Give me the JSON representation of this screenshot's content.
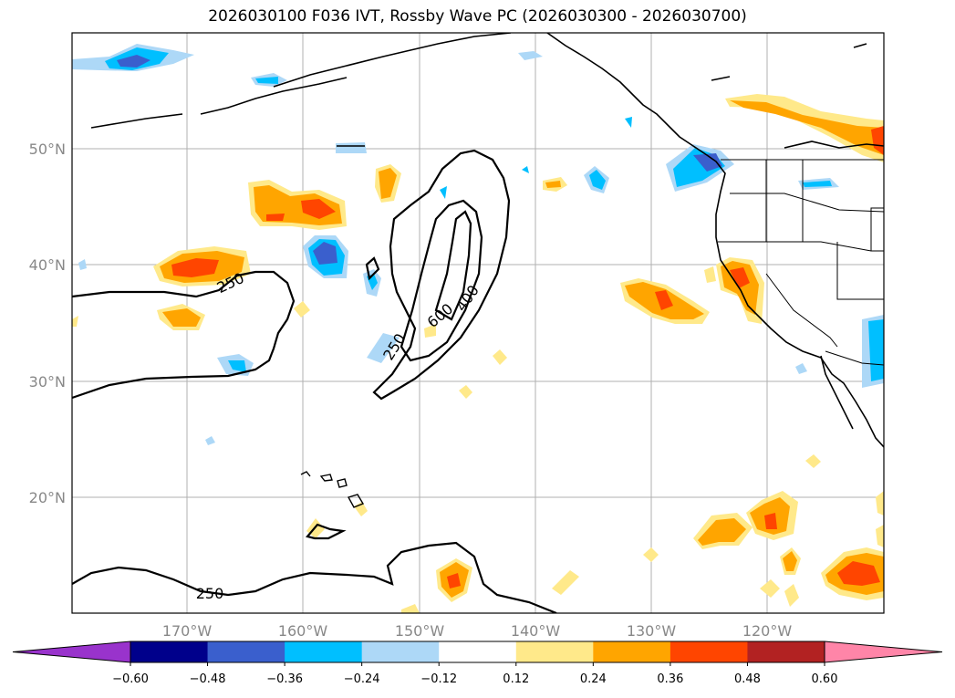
{
  "title": "2026030100 F036 IVT, Rossby Wave PC (2026030300 - 2026030700)",
  "lon_ticks": [
    "170°W",
    "160°W",
    "150°W",
    "140°W",
    "130°W",
    "120°W"
  ],
  "lat_ticks": [
    "50°N",
    "40°N",
    "30°N",
    "20°N"
  ],
  "contour_labels": [
    "250",
    "250",
    "250",
    "600",
    "400"
  ],
  "colorbar": {
    "tick_labels": [
      "−0.60",
      "−0.48",
      "−0.36",
      "−0.24",
      "−0.12",
      "0.12",
      "0.24",
      "0.36",
      "0.48",
      "0.60"
    ],
    "colors": [
      "#9933cc",
      "#00008b",
      "#3a5fcd",
      "#00bfff",
      "#add8f7",
      "#ffffff",
      "#ffe98a",
      "#ffa500",
      "#ff4500",
      "#b22222",
      "#ff85a8"
    ]
  }
}
